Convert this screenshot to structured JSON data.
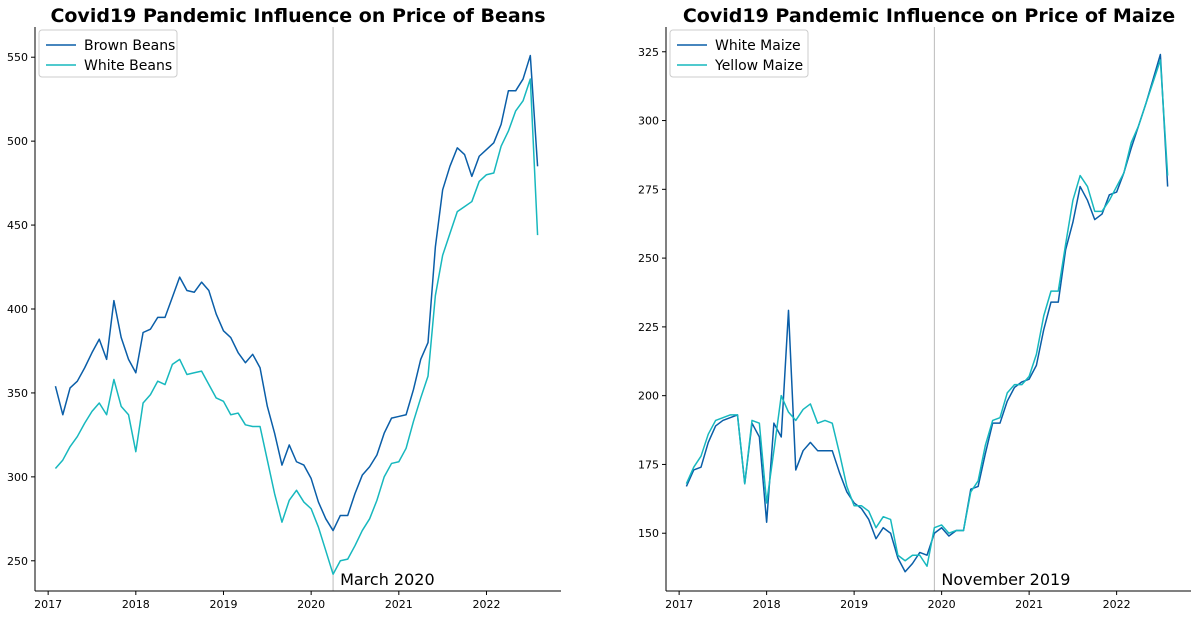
{
  "colors": {
    "series_a": "#0a5ea8",
    "series_b": "#17b8be",
    "marker_line": "#bbbbbb",
    "axis": "#000000"
  },
  "chart_data": [
    {
      "type": "line",
      "title": "Covid19 Pandemic Influence on Price of Beans",
      "xlabel": "",
      "ylabel": "",
      "xlim": [
        2016.85,
        2022.85
      ],
      "ylim": [
        232,
        568
      ],
      "x_ticks": [
        2017,
        2018,
        2019,
        2020,
        2021,
        2022
      ],
      "x_tick_labels": [
        "2017",
        "2018",
        "2019",
        "2020",
        "2021",
        "2022"
      ],
      "y_ticks": [
        250,
        300,
        350,
        400,
        450,
        500,
        550
      ],
      "y_tick_labels": [
        "250",
        "300",
        "350",
        "400",
        "450",
        "500",
        "550"
      ],
      "grid": false,
      "legend_position": "top-left",
      "vline": {
        "x": 2020.25,
        "label": "March 2020"
      },
      "x": [
        2017.083,
        2017.167,
        2017.25,
        2017.333,
        2017.417,
        2017.5,
        2017.583,
        2017.667,
        2017.75,
        2017.833,
        2017.917,
        2018.0,
        2018.083,
        2018.167,
        2018.25,
        2018.333,
        2018.417,
        2018.5,
        2018.583,
        2018.667,
        2018.75,
        2018.833,
        2018.917,
        2019.0,
        2019.083,
        2019.167,
        2019.25,
        2019.333,
        2019.417,
        2019.5,
        2019.583,
        2019.667,
        2019.75,
        2019.833,
        2019.917,
        2020.0,
        2020.083,
        2020.167,
        2020.25,
        2020.333,
        2020.417,
        2020.5,
        2020.583,
        2020.667,
        2020.75,
        2020.833,
        2020.917,
        2021.0,
        2021.083,
        2021.167,
        2021.25,
        2021.333,
        2021.417,
        2021.5,
        2021.583,
        2021.667,
        2021.75,
        2021.833,
        2021.917,
        2022.0,
        2022.083,
        2022.167,
        2022.25,
        2022.333,
        2022.417,
        2022.5,
        2022.583
      ],
      "series": [
        {
          "name": "Brown Beans",
          "values": [
            354,
            337,
            353,
            357,
            365,
            374,
            382,
            370,
            405,
            383,
            370,
            362,
            386,
            388,
            395,
            395,
            407,
            419,
            411,
            410,
            416,
            411,
            397,
            387,
            383,
            374,
            368,
            373,
            365,
            342,
            326,
            307,
            319,
            309,
            307,
            299,
            285,
            275,
            268,
            277,
            277,
            290,
            301,
            306,
            313,
            326,
            335,
            336,
            337,
            352,
            370,
            380,
            437,
            471,
            485,
            496,
            492,
            479,
            491,
            495,
            499,
            510,
            530,
            530,
            537,
            551,
            485
          ]
        },
        {
          "name": "White Beans",
          "values": [
            305,
            310,
            318,
            324,
            332,
            339,
            344,
            337,
            358,
            342,
            337,
            315,
            344,
            349,
            357,
            355,
            367,
            370,
            361,
            362,
            363,
            355,
            347,
            345,
            337,
            338,
            331,
            330,
            330,
            310,
            290,
            273,
            286,
            292,
            285,
            281,
            270,
            256,
            242,
            250,
            251,
            259,
            268,
            275,
            286,
            300,
            308,
            309,
            317,
            333,
            347,
            360,
            408,
            432,
            445,
            458,
            461,
            464,
            476,
            480,
            481,
            497,
            506,
            518,
            524,
            537,
            444
          ]
        }
      ]
    },
    {
      "type": "line",
      "title": "Covid19 Pandemic Influence on Price of Maize",
      "xlabel": "",
      "ylabel": "",
      "xlim": [
        2016.85,
        2022.85
      ],
      "ylim": [
        129,
        334
      ],
      "x_ticks": [
        2017,
        2018,
        2019,
        2020,
        2021,
        2022
      ],
      "x_tick_labels": [
        "2017",
        "2018",
        "2019",
        "2020",
        "2021",
        "2022"
      ],
      "y_ticks": [
        150,
        175,
        200,
        225,
        250,
        275,
        300,
        325
      ],
      "y_tick_labels": [
        "150",
        "175",
        "200",
        "225",
        "250",
        "275",
        "300",
        "325"
      ],
      "grid": false,
      "legend_position": "top-left",
      "vline": {
        "x": 2019.917,
        "label": "November 2019"
      },
      "x": [
        2017.083,
        2017.167,
        2017.25,
        2017.333,
        2017.417,
        2017.5,
        2017.583,
        2017.667,
        2017.75,
        2017.833,
        2017.917,
        2018.0,
        2018.083,
        2018.167,
        2018.25,
        2018.333,
        2018.417,
        2018.5,
        2018.583,
        2018.667,
        2018.75,
        2018.833,
        2018.917,
        2019.0,
        2019.083,
        2019.167,
        2019.25,
        2019.333,
        2019.417,
        2019.5,
        2019.583,
        2019.667,
        2019.75,
        2019.833,
        2019.917,
        2020.0,
        2020.083,
        2020.167,
        2020.25,
        2020.333,
        2020.417,
        2020.5,
        2020.583,
        2020.667,
        2020.75,
        2020.833,
        2020.917,
        2021.0,
        2021.083,
        2021.167,
        2021.25,
        2021.333,
        2021.417,
        2021.5,
        2021.583,
        2021.667,
        2021.75,
        2021.833,
        2021.917,
        2022.0,
        2022.083,
        2022.167,
        2022.25,
        2022.333,
        2022.417,
        2022.5,
        2022.583
      ],
      "series": [
        {
          "name": "White Maize",
          "values": [
            167,
            173,
            174,
            183,
            189,
            191,
            192,
            193,
            168,
            190,
            185,
            154,
            190,
            185,
            231,
            173,
            180,
            183,
            180,
            180,
            180,
            172,
            165,
            161,
            159,
            155,
            148,
            152,
            150,
            141,
            136,
            139,
            143,
            142,
            150,
            152,
            149,
            151,
            151,
            166,
            167,
            179,
            190,
            190,
            198,
            203,
            205,
            206,
            211,
            224,
            234,
            234,
            253,
            263,
            276,
            271,
            264,
            266,
            273,
            274,
            281,
            290,
            298,
            306,
            315,
            324,
            276
          ]
        },
        {
          "name": "Yellow Maize",
          "values": [
            168,
            174,
            178,
            186,
            191,
            192,
            193,
            193,
            168,
            191,
            190,
            161,
            180,
            200,
            194,
            191,
            195,
            197,
            190,
            191,
            190,
            179,
            167,
            160,
            160,
            158,
            152,
            156,
            155,
            142,
            140,
            142,
            142,
            138,
            152,
            153,
            150,
            151,
            151,
            165,
            169,
            182,
            191,
            192,
            201,
            204,
            204,
            207,
            215,
            229,
            238,
            238,
            255,
            271,
            280,
            276,
            267,
            267,
            271,
            276,
            281,
            292,
            298,
            306,
            314,
            322,
            280
          ]
        }
      ]
    }
  ]
}
